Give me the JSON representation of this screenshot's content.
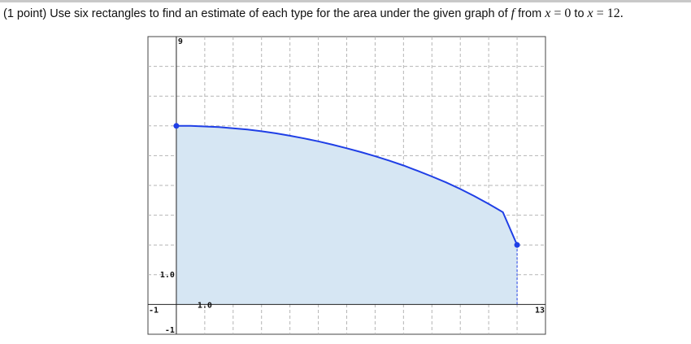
{
  "problem": {
    "prefix": "(1 point) Use six rectangles to find an estimate of each type for the area under the given graph of",
    "func": "f",
    "from_word": "from",
    "x1_var": "x",
    "eq1": "=",
    "x1_val": "0",
    "to_word": "to",
    "x2_var": "x",
    "eq2": "=",
    "x2_val": "12."
  },
  "colors": {
    "curve": "#1f3fe6",
    "fill": "#d6e6f3",
    "grid": "#b5b5b5",
    "endpoint": "#1f3fe6"
  },
  "chart_data": {
    "type": "area",
    "xlim": [
      -1,
      13
    ],
    "ylim": [
      -1,
      9
    ],
    "grid": true,
    "tick_labels": {
      "x_min": "-1",
      "x_max": "13",
      "x_unit": "1.0",
      "y_min": "-1",
      "y_max": "9",
      "y_unit": "1.0"
    },
    "x": [
      0,
      0.5,
      1,
      1.5,
      2,
      2.5,
      3,
      3.5,
      4,
      4.5,
      5,
      5.5,
      6,
      6.5,
      7,
      7.5,
      8,
      8.5,
      9,
      9.5,
      10,
      10.5,
      11,
      11.5,
      12
    ],
    "y": [
      6.0,
      6.0,
      5.98,
      5.96,
      5.92,
      5.88,
      5.82,
      5.75,
      5.67,
      5.58,
      5.48,
      5.37,
      5.25,
      5.12,
      4.98,
      4.83,
      4.67,
      4.49,
      4.3,
      4.1,
      3.88,
      3.64,
      3.38,
      3.1,
      2.0
    ],
    "shaded_interval": [
      0,
      12
    ],
    "endpoints": [
      {
        "x": 0,
        "y": 6.0
      },
      {
        "x": 12,
        "y": 2.0
      }
    ]
  }
}
